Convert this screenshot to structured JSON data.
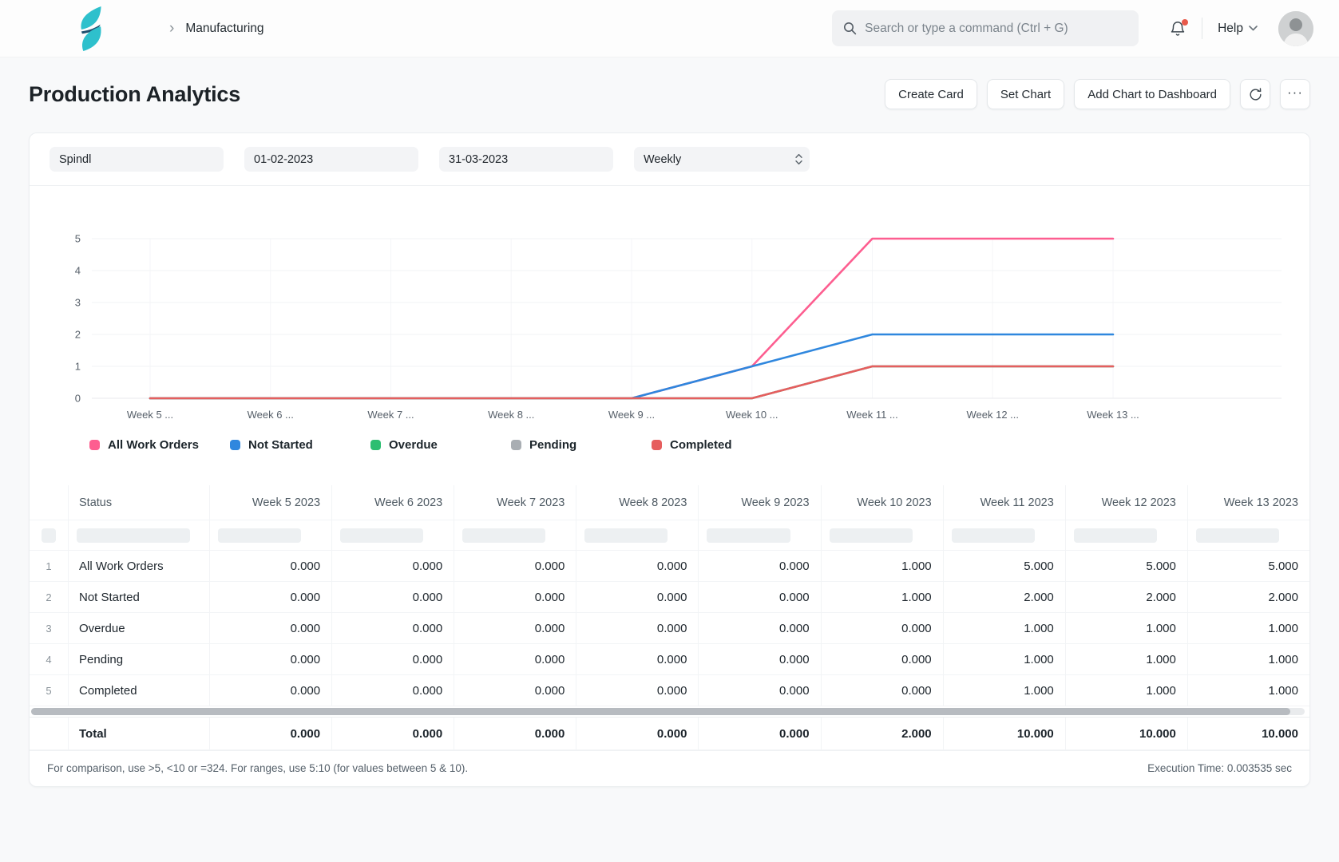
{
  "navbar": {
    "breadcrumb": "Manufacturing",
    "search_placeholder": "Search or type a command (Ctrl + G)",
    "help_label": "Help"
  },
  "page": {
    "title": "Production Analytics",
    "actions": {
      "create_card": "Create Card",
      "set_chart": "Set Chart",
      "add_chart_to_dashboard": "Add Chart to Dashboard",
      "more": "···"
    }
  },
  "filters": {
    "party": "Spindl",
    "from_date": "01-02-2023",
    "to_date": "31-03-2023",
    "range": "Weekly"
  },
  "chart_data": {
    "type": "line",
    "x": [
      "Week 5 ...",
      "Week 6 ...",
      "Week 7 ...",
      "Week 8 ...",
      "Week 9 ...",
      "Week 10 ...",
      "Week 11 ...",
      "Week 12 ...",
      "Week 13 ..."
    ],
    "yticks": [
      0,
      1,
      2,
      3,
      4,
      5
    ],
    "ylim": [
      0,
      5
    ],
    "grid": true,
    "legend_position": "bottom",
    "series": [
      {
        "name": "All Work Orders",
        "color": "#fd5e90",
        "values": [
          0,
          0,
          0,
          0,
          0,
          1,
          5,
          5,
          5
        ]
      },
      {
        "name": "Not Started",
        "color": "#2f87de",
        "values": [
          0,
          0,
          0,
          0,
          0,
          1,
          2,
          2,
          2
        ]
      },
      {
        "name": "Overdue",
        "color": "#2dbe71",
        "values": [
          0,
          0,
          0,
          0,
          0,
          0,
          1,
          1,
          1
        ]
      },
      {
        "name": "Pending",
        "color": "#a9aeb3",
        "values": [
          0,
          0,
          0,
          0,
          0,
          0,
          1,
          1,
          1
        ]
      },
      {
        "name": "Completed",
        "color": "#e65e5e",
        "values": [
          0,
          0,
          0,
          0,
          0,
          0,
          1,
          1,
          1
        ]
      }
    ]
  },
  "table": {
    "status_header": "Status",
    "week_columns": [
      "Week 5 2023",
      "Week 6 2023",
      "Week 7 2023",
      "Week 8 2023",
      "Week 9 2023",
      "Week 10 2023",
      "Week 11 2023",
      "Week 12 2023",
      "Week 13 2023"
    ],
    "rows": [
      {
        "idx": "1",
        "status": "All Work Orders",
        "values": [
          "0.000",
          "0.000",
          "0.000",
          "0.000",
          "0.000",
          "1.000",
          "5.000",
          "5.000",
          "5.000"
        ]
      },
      {
        "idx": "2",
        "status": "Not Started",
        "values": [
          "0.000",
          "0.000",
          "0.000",
          "0.000",
          "0.000",
          "1.000",
          "2.000",
          "2.000",
          "2.000"
        ]
      },
      {
        "idx": "3",
        "status": "Overdue",
        "values": [
          "0.000",
          "0.000",
          "0.000",
          "0.000",
          "0.000",
          "0.000",
          "1.000",
          "1.000",
          "1.000"
        ]
      },
      {
        "idx": "4",
        "status": "Pending",
        "values": [
          "0.000",
          "0.000",
          "0.000",
          "0.000",
          "0.000",
          "0.000",
          "1.000",
          "1.000",
          "1.000"
        ]
      },
      {
        "idx": "5",
        "status": "Completed",
        "values": [
          "0.000",
          "0.000",
          "0.000",
          "0.000",
          "0.000",
          "0.000",
          "1.000",
          "1.000",
          "1.000"
        ]
      }
    ],
    "total": {
      "label": "Total",
      "values": [
        "0.000",
        "0.000",
        "0.000",
        "0.000",
        "0.000",
        "2.000",
        "10.000",
        "10.000",
        "10.000"
      ]
    }
  },
  "footer": {
    "hint": "For comparison, use >5, <10 or =324. For ranges, use 5:10 (for values between 5 & 10).",
    "execution_time": "Execution Time: 0.003535 sec"
  },
  "colors": {
    "logo_teal": "#2ec0cc",
    "logo_navy": "#20506f",
    "notification_dot": "#e8594a"
  }
}
